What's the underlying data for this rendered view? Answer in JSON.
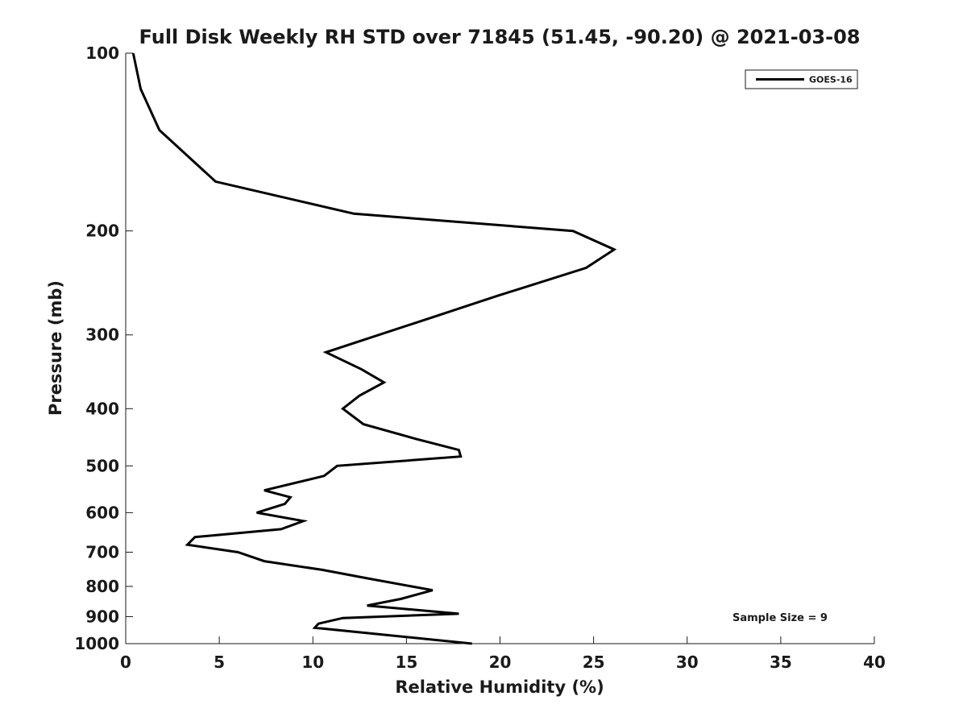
{
  "chart_data": {
    "type": "line",
    "title": "Full Disk Weekly RH STD over 71845 (51.45, -90.20) @ 2021-03-08",
    "xlabel": "Relative Humidity (%)",
    "ylabel": "Pressure (mb)",
    "xlim": [
      0,
      40
    ],
    "ylim": [
      100,
      1000
    ],
    "y_scale": "log",
    "y_reversed": true,
    "grid": false,
    "legend_position": "top-right",
    "x_ticks": [
      "0",
      "5",
      "10",
      "15",
      "20",
      "25",
      "30",
      "35",
      "40"
    ],
    "x_tick_values": [
      0,
      5,
      10,
      15,
      20,
      25,
      30,
      35,
      40
    ],
    "y_ticks": [
      "100",
      "200",
      "300",
      "400",
      "500",
      "600",
      "700",
      "800",
      "900",
      "1000"
    ],
    "y_tick_values": [
      100,
      200,
      300,
      400,
      500,
      600,
      700,
      800,
      900,
      1000
    ],
    "series": [
      {
        "name": "GOES-16",
        "color": "#000000",
        "x": [
          0.4,
          0.8,
          1.8,
          4.8,
          12.2,
          23.9,
          26.1,
          24.6,
          19.8,
          16.4,
          10.7,
          12.6,
          13.8,
          12.5,
          11.6,
          12.7,
          15.5,
          17.8,
          17.9,
          11.3,
          10.6,
          7.4,
          8.8,
          8.5,
          7.0,
          9.5,
          8.3,
          3.7,
          3.3,
          6.0,
          7.4,
          10.5,
          12.9,
          16.4,
          14.7,
          12.9,
          17.8,
          11.6,
          10.3,
          10.1,
          18.5
        ],
        "y": [
          100,
          115,
          135,
          165,
          187,
          200,
          215,
          231,
          258,
          280,
          321,
          343,
          361,
          380,
          400,
          425,
          450,
          470,
          482,
          500,
          520,
          550,
          565,
          580,
          600,
          620,
          640,
          660,
          680,
          700,
          725,
          750,
          775,
          812,
          840,
          862,
          890,
          905,
          925,
          940,
          1000
        ]
      }
    ],
    "annotations": [
      "Sample Size = 9"
    ]
  }
}
